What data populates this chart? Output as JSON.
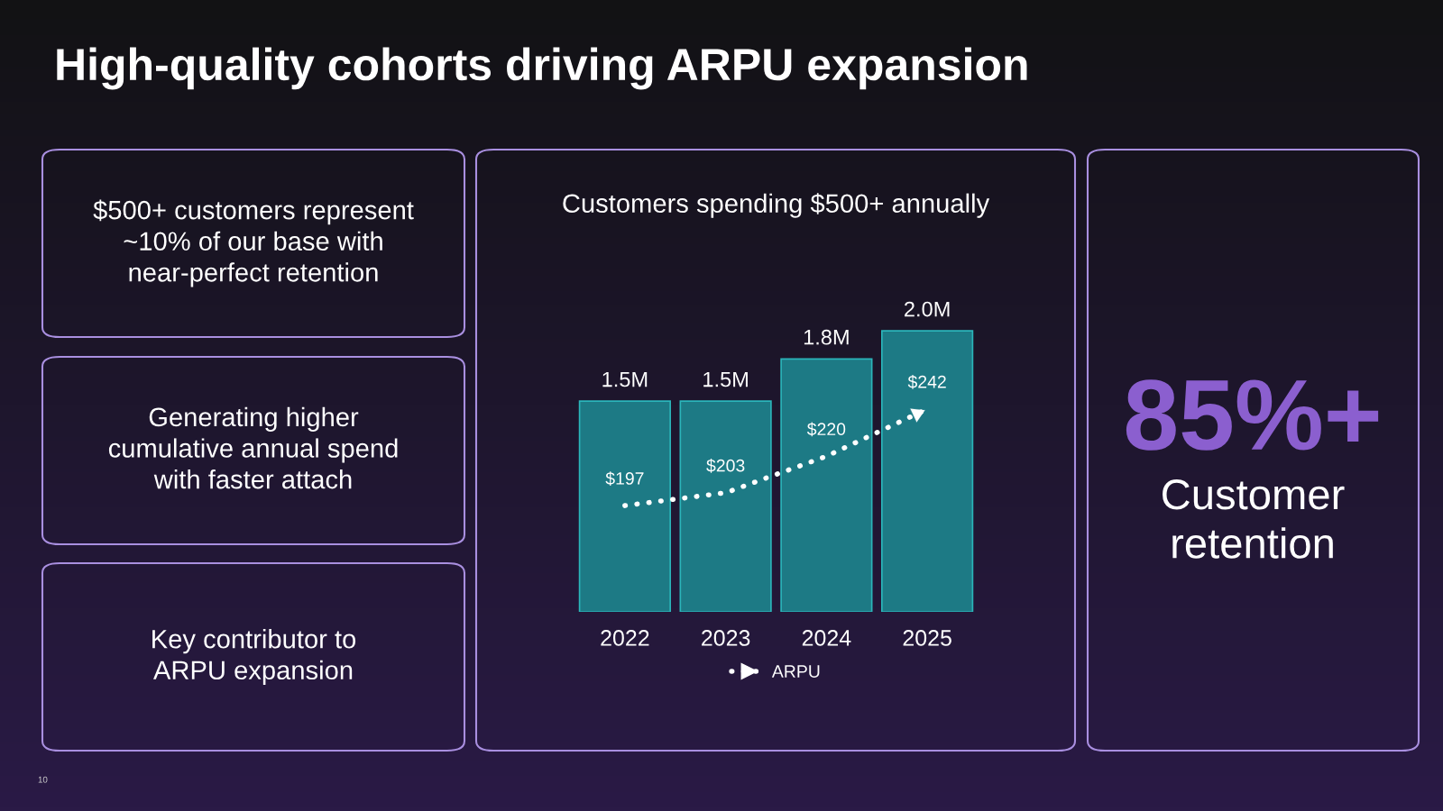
{
  "chart_data": [
    {
      "type": "other",
      "title": "High-quality cohorts driving ARPU expansion",
      "annotations": [
        "$500+ customers represent\n~10% of our base with\nnear-perfect retention",
        "Generating higher\ncumulative annual spend\nwith faster attach",
        "Key contributor to\nARPU expansion",
        "10"
      ]
    },
    {
      "type": "bar",
      "title": "Customers spending $500+ annually",
      "categories": [
        "2022",
        "2023",
        "2024",
        "2025"
      ],
      "series": [
        {
          "type": "bar",
          "color": "#1d7a85",
          "values": [
            1.5,
            1.5,
            1.8,
            2.0
          ],
          "value_labels": [
            "1.5M",
            "1.5M",
            "1.8M",
            "2.0M"
          ]
        },
        {
          "type": "line",
          "name": "ARPU",
          "axis": "y2",
          "color": "#ffffff",
          "values": [
            197,
            203,
            220,
            242
          ],
          "value_labels": [
            "$197",
            "$203",
            "$220",
            "$242"
          ],
          "line_style": "dotted"
        }
      ],
      "tick_labels": "x",
      "legend": "bottom",
      "grid": false
    },
    {
      "type": "other",
      "annotations": [
        "85%+",
        "Customer\nretention"
      ]
    }
  ]
}
